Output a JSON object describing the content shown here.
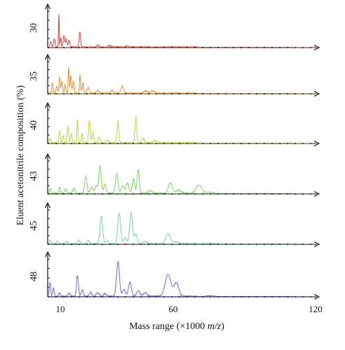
{
  "chart_data": {
    "type": "line",
    "title": "",
    "xlabel_prefix": "Mass range (×1000 ",
    "xlabel_italic": "m/z",
    "xlabel_suffix": ")",
    "ylabel": "Eluent acetonitrile composition (%)",
    "xlim": [
      7,
      120
    ],
    "x_ticks": [
      10,
      60,
      120
    ],
    "x_tick_labels": [
      "10",
      "60",
      "120"
    ],
    "grid": false,
    "legend": "none",
    "series": [
      {
        "name": "30",
        "color": "#d9534f",
        "baseline_color": "#8a3a2a",
        "noise": 0.04,
        "peaks": [
          [
            8.3,
            0.15,
            0.3
          ],
          [
            9.8,
            0.25,
            0.3
          ],
          [
            11.7,
            1.0,
            0.15
          ],
          [
            12.5,
            0.3,
            0.2
          ],
          [
            13.8,
            0.35,
            0.3
          ],
          [
            14.8,
            0.25,
            0.3
          ],
          [
            16.0,
            0.2,
            0.3
          ],
          [
            20.5,
            0.45,
            0.3
          ],
          [
            28,
            0.06,
            0.4
          ],
          [
            33,
            0.05,
            0.5
          ],
          [
            40,
            0.04,
            0.5
          ]
        ]
      },
      {
        "name": "35",
        "color": "#e59a3a",
        "baseline_color": "#7a5a2a",
        "noise": 0.05,
        "peaks": [
          [
            9.0,
            0.35,
            0.3
          ],
          [
            10.8,
            0.25,
            0.3
          ],
          [
            12.0,
            0.55,
            0.25
          ],
          [
            13.0,
            0.4,
            0.3
          ],
          [
            14.3,
            0.3,
            0.25
          ],
          [
            15.8,
            0.88,
            0.2
          ],
          [
            16.7,
            0.6,
            0.25
          ],
          [
            17.8,
            0.4,
            0.3
          ],
          [
            20.6,
            0.62,
            0.25
          ],
          [
            21.8,
            0.35,
            0.3
          ],
          [
            24,
            0.2,
            0.4
          ],
          [
            28,
            0.1,
            0.5
          ],
          [
            34,
            0.1,
            0.5
          ],
          [
            38.3,
            0.25,
            0.5
          ],
          [
            48,
            0.08,
            0.8
          ],
          [
            51,
            0.08,
            0.8
          ]
        ]
      },
      {
        "name": "40",
        "color": "#c6d650",
        "baseline_color": "#5a6a2a",
        "noise": 0.05,
        "peaks": [
          [
            8.0,
            0.15,
            0.3
          ],
          [
            12.0,
            0.4,
            0.3
          ],
          [
            13.5,
            0.25,
            0.3
          ],
          [
            15.5,
            0.55,
            0.3
          ],
          [
            17.0,
            0.3,
            0.3
          ],
          [
            19.5,
            0.75,
            0.25
          ],
          [
            21.5,
            0.3,
            0.3
          ],
          [
            24.5,
            0.72,
            0.35
          ],
          [
            26,
            0.35,
            0.35
          ],
          [
            28.5,
            0.2,
            0.4
          ],
          [
            32,
            0.1,
            0.5
          ],
          [
            36.5,
            0.72,
            0.35
          ],
          [
            44.0,
            0.85,
            0.35
          ],
          [
            47,
            0.15,
            0.5
          ],
          [
            52,
            0.08,
            0.8
          ]
        ]
      },
      {
        "name": "43",
        "color": "#86d46e",
        "baseline_color": "#2a4a2a",
        "noise": 0.05,
        "peaks": [
          [
            8.0,
            0.15,
            0.3
          ],
          [
            12.0,
            0.2,
            0.3
          ],
          [
            14.5,
            0.15,
            0.4
          ],
          [
            18,
            0.15,
            0.5
          ],
          [
            23,
            0.55,
            0.5
          ],
          [
            25.5,
            0.2,
            0.5
          ],
          [
            27.5,
            0.25,
            0.6
          ],
          [
            29.0,
            0.92,
            0.45
          ],
          [
            31,
            0.3,
            0.5
          ],
          [
            36.0,
            0.65,
            0.55
          ],
          [
            38.5,
            0.25,
            0.6
          ],
          [
            40.5,
            0.35,
            0.6
          ],
          [
            43.0,
            0.5,
            0.5
          ],
          [
            45.0,
            0.8,
            0.45
          ],
          [
            50,
            0.1,
            0.8
          ],
          [
            58.5,
            0.35,
            0.8
          ],
          [
            62,
            0.1,
            1.0
          ],
          [
            70.5,
            0.28,
            1.2
          ],
          [
            75,
            0.05,
            1.5
          ]
        ]
      },
      {
        "name": "45",
        "color": "#7fd6b4",
        "baseline_color": "#2a4a4a",
        "noise": 0.04,
        "peaks": [
          [
            8.0,
            0.12,
            0.3
          ],
          [
            11,
            0.08,
            0.4
          ],
          [
            15,
            0.08,
            0.5
          ],
          [
            20,
            0.12,
            0.5
          ],
          [
            24,
            0.1,
            0.5
          ],
          [
            29.5,
            0.88,
            0.55
          ],
          [
            32,
            0.1,
            0.6
          ],
          [
            37.0,
            0.98,
            0.6
          ],
          [
            39.5,
            0.2,
            0.6
          ],
          [
            42.0,
            1.0,
            0.6
          ],
          [
            44.0,
            0.3,
            0.6
          ],
          [
            48,
            0.08,
            0.8
          ],
          [
            57.5,
            0.32,
            1.0
          ],
          [
            61,
            0.08,
            1.0
          ],
          [
            75,
            0.03,
            1.5
          ]
        ]
      },
      {
        "name": "48",
        "color": "#7a7ad0",
        "baseline_color": "#2a2a5a",
        "noise": 0.04,
        "peaks": [
          [
            8.0,
            0.4,
            0.3
          ],
          [
            9.5,
            0.25,
            0.3
          ],
          [
            12,
            0.1,
            0.4
          ],
          [
            16,
            0.08,
            0.5
          ],
          [
            19.5,
            0.6,
            0.4
          ],
          [
            21.5,
            0.2,
            0.4
          ],
          [
            25,
            0.12,
            0.5
          ],
          [
            28,
            0.1,
            0.6
          ],
          [
            31,
            0.08,
            0.6
          ],
          [
            36.5,
            1.0,
            0.6
          ],
          [
            39,
            0.2,
            0.6
          ],
          [
            41.5,
            0.4,
            0.6
          ],
          [
            45,
            0.15,
            0.7
          ],
          [
            48,
            0.1,
            0.8
          ],
          [
            57.5,
            0.62,
            1.2
          ],
          [
            61.0,
            0.38,
            1.0
          ],
          [
            75,
            0.03,
            1.5
          ]
        ]
      }
    ]
  }
}
